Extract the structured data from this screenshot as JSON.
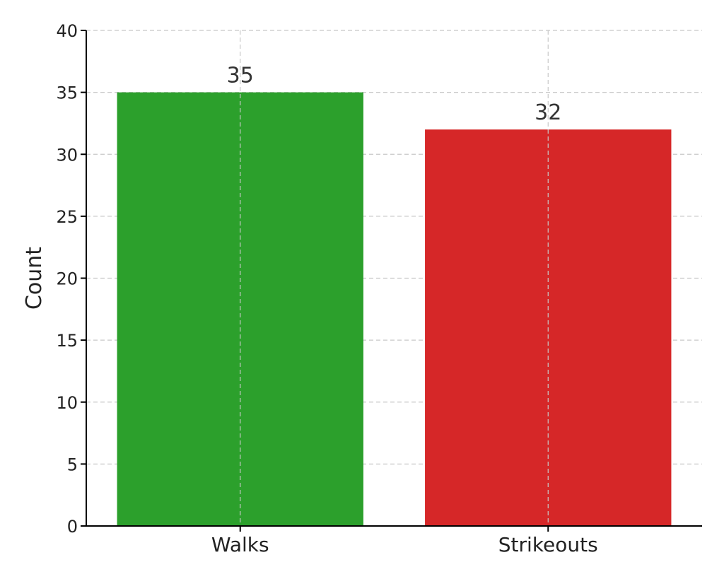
{
  "chart_data": {
    "type": "bar",
    "title": "",
    "xlabel": "",
    "ylabel": "Count",
    "categories": [
      "Walks",
      "Strikeouts"
    ],
    "values": [
      35,
      32
    ],
    "colors": [
      "#2ca02c",
      "#d62728"
    ],
    "data_labels": [
      "35",
      "32"
    ],
    "ylim": [
      0,
      40
    ],
    "yticks": [
      0,
      5,
      10,
      15,
      20,
      25,
      30,
      35,
      40
    ],
    "grid": true,
    "legend": "none"
  }
}
